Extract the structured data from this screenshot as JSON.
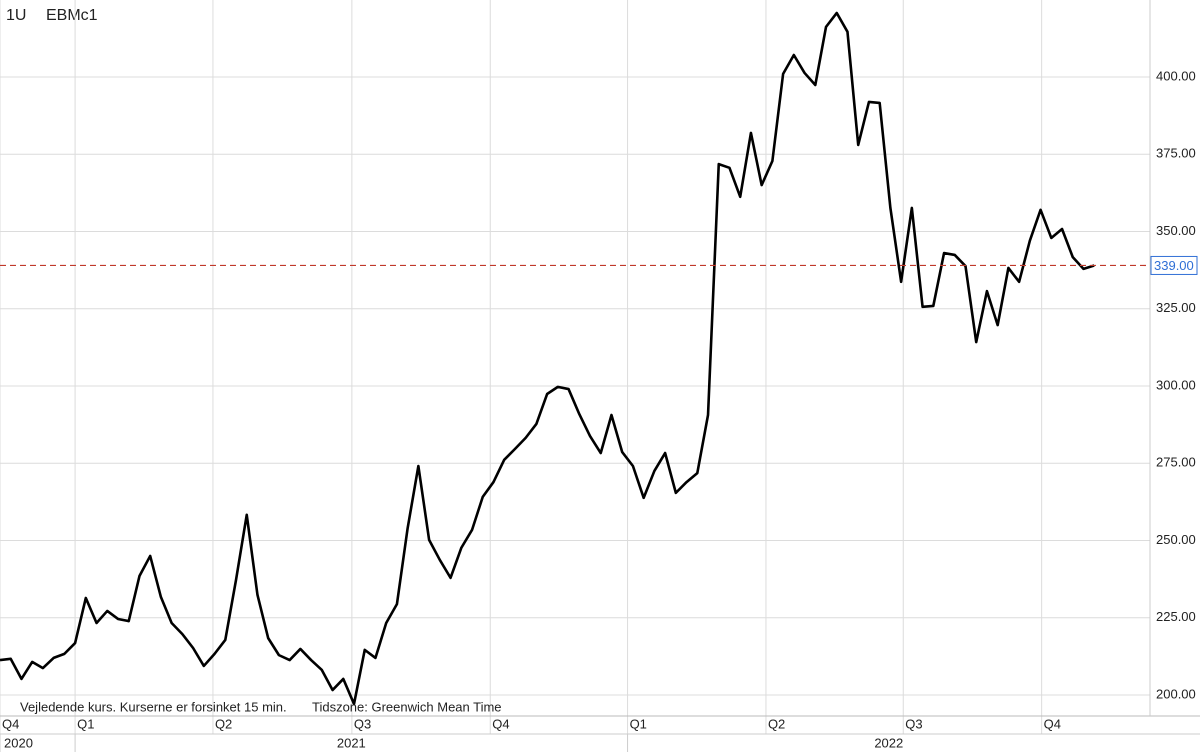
{
  "header": {
    "interval": "1U",
    "symbol": "EBMc1"
  },
  "footer": {
    "note": "Vejledende kurs. Kurserne er forsinket 15 min.",
    "timezone": "Tidszone: Greenwich Mean Time"
  },
  "chart_data": {
    "type": "line",
    "series": [
      {
        "color": "#000000",
        "values": [
          211.3,
          211.7,
          205.2,
          210.7,
          208.7,
          212.0,
          213.3,
          216.8,
          231.4,
          223.3,
          227.2,
          224.6,
          223.9,
          238.5,
          245.0,
          231.7,
          223.3,
          219.7,
          215.2,
          209.4,
          213.3,
          217.8,
          237.2,
          258.3,
          232.4,
          218.4,
          212.9,
          211.3,
          214.9,
          211.3,
          208.1,
          201.6,
          205.2,
          197.1,
          214.6,
          212.0,
          223.3,
          229.4,
          254.0,
          274.1,
          250.2,
          243.7,
          237.9,
          247.6,
          253.4,
          264.1,
          268.9,
          276.1,
          279.6,
          283.2,
          287.7,
          297.4,
          299.7,
          299.0,
          290.9,
          283.8,
          278.3,
          290.6,
          278.6,
          274.1,
          263.8,
          272.5,
          278.3,
          265.4,
          268.9,
          271.8,
          290.6,
          371.8,
          370.6,
          361.2,
          381.9,
          365.0,
          372.8,
          401.0,
          407.1,
          401.3,
          397.4,
          416.2,
          420.7,
          414.6,
          378.0,
          391.9,
          391.6,
          357.6,
          333.7,
          357.6,
          325.6,
          325.9,
          343.0,
          342.4,
          338.8,
          314.2,
          330.7,
          319.7,
          338.2,
          333.7,
          347.0,
          357.0,
          347.9,
          350.8,
          341.7,
          337.9,
          339.0
        ]
      }
    ],
    "xlim": [
      0,
      107.2
    ],
    "xticks": [
      {
        "value": 0,
        "label": "Q4"
      },
      {
        "value": 7,
        "label": "Q1"
      },
      {
        "value": 19.85,
        "label": "Q2"
      },
      {
        "value": 32.8,
        "label": "Q3"
      },
      {
        "value": 45.7,
        "label": "Q4"
      },
      {
        "value": 58.5,
        "label": "Q1"
      },
      {
        "value": 71.4,
        "label": "Q2"
      },
      {
        "value": 84.2,
        "label": "Q3"
      },
      {
        "value": 97.1,
        "label": "Q4"
      }
    ],
    "year_ticks": [
      {
        "value": 0,
        "label": "2020"
      },
      {
        "value": 7,
        "label": "2021"
      },
      {
        "value": 58.5,
        "label": "2022"
      }
    ],
    "ylim": [
      193.2,
      424.9
    ],
    "yticks": [
      {
        "value": 200,
        "label": "200.00"
      },
      {
        "value": 225,
        "label": "225.00"
      },
      {
        "value": 250,
        "label": "250.00"
      },
      {
        "value": 275,
        "label": "275.00"
      },
      {
        "value": 300,
        "label": "300.00"
      },
      {
        "value": 325,
        "label": "325.00"
      },
      {
        "value": 350,
        "label": "350.00"
      },
      {
        "value": 375,
        "label": "375.00"
      },
      {
        "value": 400,
        "label": "400.00"
      }
    ],
    "current_price": {
      "value": 339,
      "label": "339.00",
      "color": "#c0392b"
    },
    "grid": true
  }
}
